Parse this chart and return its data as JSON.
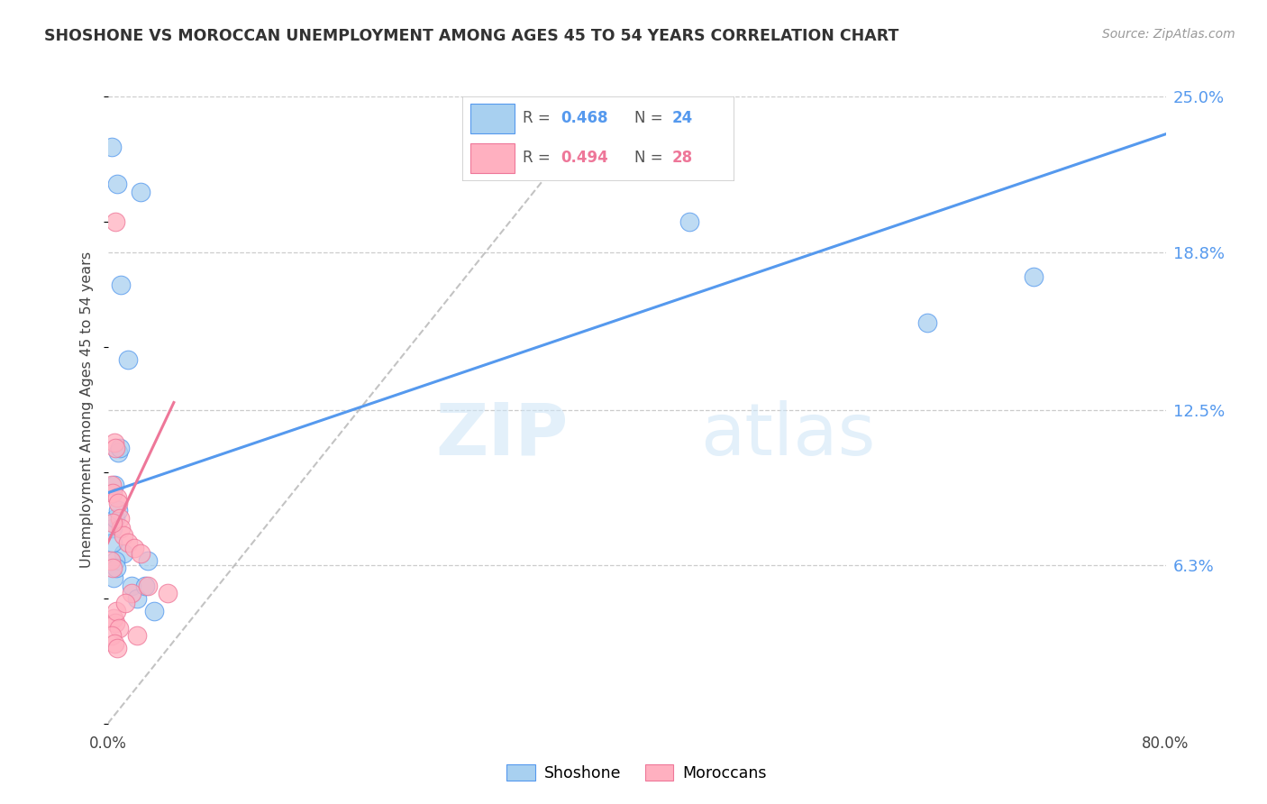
{
  "title": "SHOSHONE VS MOROCCAN UNEMPLOYMENT AMONG AGES 45 TO 54 YEARS CORRELATION CHART",
  "source": "Source: ZipAtlas.com",
  "ylabel": "Unemployment Among Ages 45 to 54 years",
  "xlim": [
    0.0,
    80.0
  ],
  "ylim": [
    0.0,
    25.0
  ],
  "shoshone_color": "#a8d0f0",
  "moroccan_color": "#ffb0c0",
  "line_color_shoshone": "#5599ee",
  "line_color_moroccan": "#ee7799",
  "legend_R1": "0.468",
  "legend_N1": "24",
  "legend_R2": "0.494",
  "legend_N2": "28",
  "watermark_zip": "ZIP",
  "watermark_atlas": "atlas",
  "shoshone_x": [
    0.3,
    0.7,
    2.5,
    1.0,
    0.5,
    0.4,
    0.6,
    0.8,
    1.2,
    1.8,
    2.2,
    3.0,
    0.35,
    0.55,
    0.75,
    0.9,
    1.5,
    2.8,
    3.5,
    44.0,
    62.0,
    70.0,
    0.45,
    0.65
  ],
  "shoshone_y": [
    23.0,
    21.5,
    21.2,
    17.5,
    9.5,
    7.8,
    8.2,
    10.8,
    6.8,
    5.5,
    5.0,
    6.5,
    7.2,
    6.5,
    8.5,
    11.0,
    14.5,
    5.5,
    4.5,
    20.0,
    16.0,
    17.8,
    5.8,
    6.2
  ],
  "moroccan_x": [
    0.3,
    0.4,
    0.5,
    0.6,
    0.7,
    0.8,
    0.9,
    1.0,
    1.2,
    1.5,
    1.8,
    2.0,
    2.5,
    0.25,
    0.35,
    0.45,
    0.55,
    0.65,
    0.85,
    3.0,
    4.5,
    0.3,
    0.5,
    0.7,
    1.3,
    2.2,
    0.4,
    0.6
  ],
  "moroccan_y": [
    9.5,
    9.2,
    11.2,
    11.0,
    9.0,
    8.8,
    8.2,
    7.8,
    7.5,
    7.2,
    5.2,
    7.0,
    6.8,
    6.5,
    6.2,
    4.2,
    4.0,
    4.5,
    3.8,
    5.5,
    5.2,
    3.5,
    3.2,
    3.0,
    4.8,
    3.5,
    8.0,
    20.0
  ],
  "shoshone_line_x": [
    0.0,
    80.0
  ],
  "shoshone_line_y": [
    9.2,
    23.5
  ],
  "moroccan_line_x": [
    0.0,
    5.0
  ],
  "moroccan_line_y": [
    7.2,
    12.8
  ],
  "diag_line_x": [
    0.0,
    38.0
  ],
  "diag_line_y": [
    0.0,
    25.0
  ]
}
